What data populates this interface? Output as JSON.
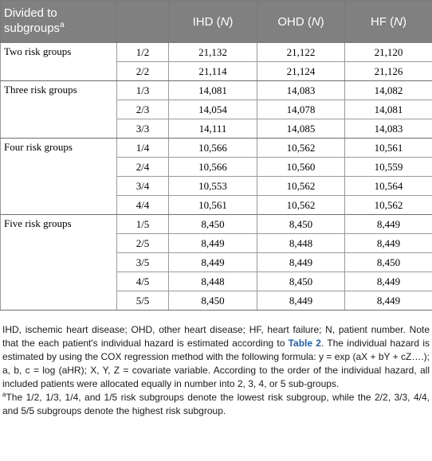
{
  "header": {
    "col0": "Divided to subgroups",
    "col0_sup": "a",
    "col2": "IHD (",
    "col3": "OHD (",
    "col4": "HF (",
    "n": "N",
    "close": ")"
  },
  "groups": [
    {
      "name": "Two risk groups",
      "rows": [
        {
          "sub": "1/2",
          "ihd": "21,132",
          "ohd": "21,122",
          "hf": "21,120"
        },
        {
          "sub": "2/2",
          "ihd": "21,114",
          "ohd": "21,124",
          "hf": "21,126"
        }
      ]
    },
    {
      "name": "Three risk groups",
      "rows": [
        {
          "sub": "1/3",
          "ihd": "14,081",
          "ohd": "14,083",
          "hf": "14,082"
        },
        {
          "sub": "2/3",
          "ihd": "14,054",
          "ohd": "14,078",
          "hf": "14,081"
        },
        {
          "sub": "3/3",
          "ihd": "14,111",
          "ohd": "14,085",
          "hf": "14,083"
        }
      ]
    },
    {
      "name": "Four risk groups",
      "rows": [
        {
          "sub": "1/4",
          "ihd": "10,566",
          "ohd": "10,562",
          "hf": "10,561"
        },
        {
          "sub": "2/4",
          "ihd": "10,566",
          "ohd": "10,560",
          "hf": "10,559"
        },
        {
          "sub": "3/4",
          "ihd": "10,553",
          "ohd": "10,562",
          "hf": "10,564"
        },
        {
          "sub": "4/4",
          "ihd": "10,561",
          "ohd": "10,562",
          "hf": "10,562"
        }
      ]
    },
    {
      "name": "Five risk groups",
      "rows": [
        {
          "sub": "1/5",
          "ihd": "8,450",
          "ohd": "8,450",
          "hf": "8,449"
        },
        {
          "sub": "2/5",
          "ihd": "8,449",
          "ohd": "8,448",
          "hf": "8,449"
        },
        {
          "sub": "3/5",
          "ihd": "8,449",
          "ohd": "8,449",
          "hf": "8,450"
        },
        {
          "sub": "4/5",
          "ihd": "8,448",
          "ohd": "8,450",
          "hf": "8,449"
        },
        {
          "sub": "5/5",
          "ihd": "8,450",
          "ohd": "8,449",
          "hf": "8,449"
        }
      ]
    }
  ],
  "footnote": {
    "text_before_link": "IHD, ischemic heart disease; OHD, other heart disease; HF, heart failure; N, patient number. Note that the each patient's individual hazard is estimated according to ",
    "link": "Table 2",
    "text_after_link": ". The individual hazard is estimated by using the COX regression method with the following formula: y = exp (aX + bY + cZ….); a, b, c = log (aHR); X, Y, Z = covariate variable. According to the order of the individual hazard, all included patients were allocated equally in number into 2, 3, 4, or 5 sub-groups.",
    "note_mark": "a",
    "note_text": "The 1/2, 1/3, 1/4, and 1/5 risk subgroups denote the lowest risk subgroup, while the 2/2, 3/3, 4/4, and 5/5 subgroups denote the highest risk subgroup."
  }
}
